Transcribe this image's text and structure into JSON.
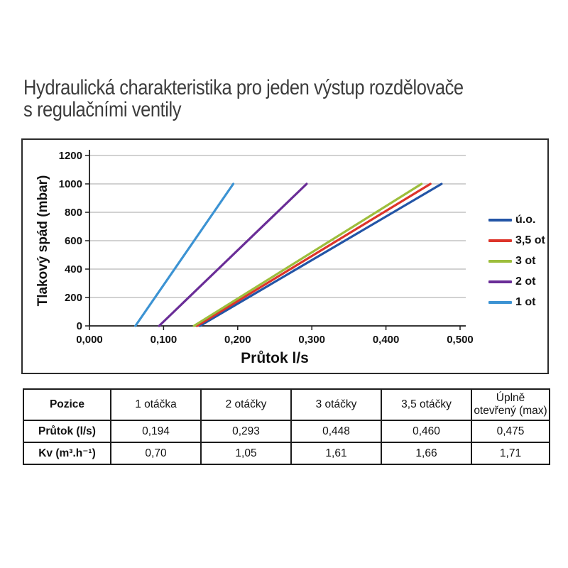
{
  "title": {
    "line1": "Hydraulická charakteristika pro jeden výstup rozdělovače",
    "line2": "s regulačními ventily"
  },
  "chart_data": {
    "type": "line",
    "title": "",
    "xlabel": "Průtok l/s",
    "ylabel": "Tlakový spád (mbar)",
    "xlim": [
      0,
      0.5
    ],
    "ylim": [
      0,
      1200
    ],
    "xtick_labels": [
      "0,000",
      "0,100",
      "0,200",
      "0,300",
      "0,400",
      "0,500"
    ],
    "xtick_values": [
      0,
      0.1,
      0.2,
      0.3,
      0.4,
      0.5
    ],
    "ytick_values": [
      0,
      200,
      400,
      600,
      800,
      1000,
      1200
    ],
    "grid": "horizontal-major",
    "legend_position": "right",
    "colors": {
      "grid": "#b8b8b8",
      "axis": "#1c1c1c",
      "tick_text": "#111111"
    },
    "series": [
      {
        "name": "ú.o.",
        "color": "#2355a6",
        "points": [
          [
            0.149,
            0
          ],
          [
            0.475,
            1000
          ]
        ]
      },
      {
        "name": "3,5 ot",
        "color": "#dd342a",
        "points": [
          [
            0.145,
            0
          ],
          [
            0.46,
            1000
          ]
        ]
      },
      {
        "name": "3 ot",
        "color": "#9dbe3c",
        "points": [
          [
            0.141,
            0
          ],
          [
            0.448,
            1000
          ]
        ]
      },
      {
        "name": "2 ot",
        "color": "#6a2d97",
        "points": [
          [
            0.094,
            0
          ],
          [
            0.293,
            1000
          ]
        ]
      },
      {
        "name": "1 ot",
        "color": "#3c93d3",
        "points": [
          [
            0.062,
            0
          ],
          [
            0.194,
            1000
          ]
        ]
      }
    ]
  },
  "table": {
    "headers": [
      "Pozice",
      "1 otáčka",
      "2 otáčky",
      "3 otáčky",
      "3,5 otáčky",
      "Úplně otevřený (max)"
    ],
    "rows": [
      {
        "label": "Průtok (l/s)",
        "values": [
          "0,194",
          "0,293",
          "0,448",
          "0,460",
          "0,475"
        ]
      },
      {
        "label": "Kv (m³.h⁻¹)",
        "values": [
          "0,70",
          "1,05",
          "1,61",
          "1,66",
          "1,71"
        ]
      }
    ]
  }
}
